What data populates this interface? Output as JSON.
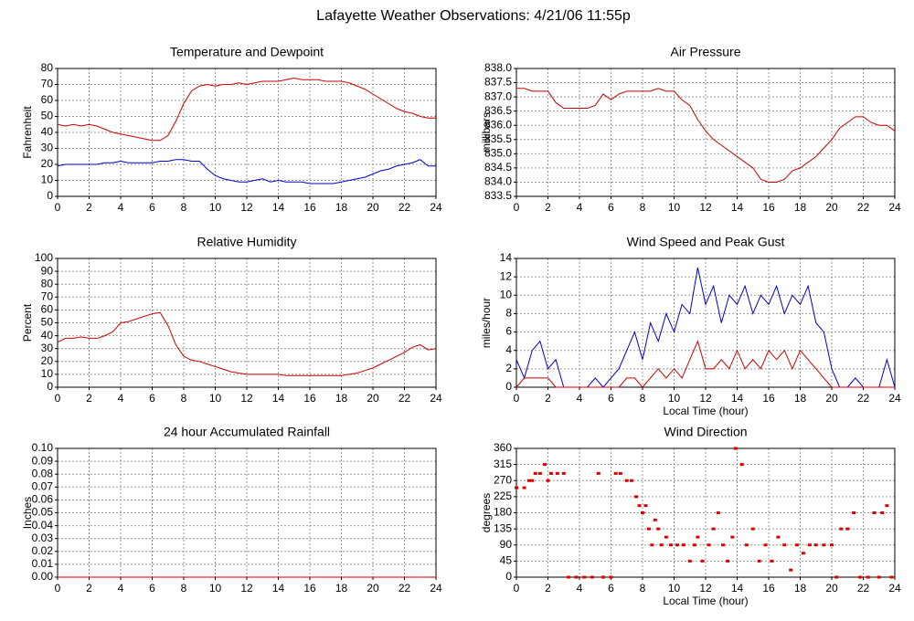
{
  "title": "Lafayette Weather Observations: 4/21/06 11:55p",
  "chart_data": [
    {
      "type": "line",
      "title": "Temperature and Dewpoint",
      "ylabel": "Fahrenheit",
      "xlim": [
        0,
        24
      ],
      "ylim": [
        0,
        80
      ],
      "xticks": [
        0,
        2,
        4,
        6,
        8,
        10,
        12,
        14,
        16,
        18,
        20,
        22,
        24
      ],
      "yticks": [
        0,
        10,
        20,
        30,
        40,
        50,
        60,
        70,
        80
      ],
      "grid": true,
      "x": [
        0,
        0.5,
        1,
        1.5,
        2,
        2.5,
        3,
        3.5,
        4,
        4.5,
        5,
        5.5,
        6,
        6.5,
        7,
        7.5,
        8,
        8.5,
        9,
        9.5,
        10,
        10.5,
        11,
        11.5,
        12,
        12.5,
        13,
        13.5,
        14,
        14.5,
        15,
        15.5,
        16,
        16.5,
        17,
        17.5,
        18,
        18.5,
        19,
        19.5,
        20,
        20.5,
        21,
        21.5,
        22,
        22.5,
        23,
        23.5,
        24
      ],
      "series": [
        {
          "color": "#cc0000",
          "values": [
            45,
            44,
            45,
            44,
            45,
            44,
            42,
            40,
            39,
            38,
            37,
            36,
            35,
            35,
            38,
            47,
            58,
            66,
            69,
            70,
            69,
            70,
            70,
            71,
            70,
            71,
            72,
            72,
            72,
            73,
            74,
            73,
            73,
            73,
            72,
            72,
            72,
            71,
            69,
            67,
            64,
            61,
            58,
            55,
            53,
            52,
            50,
            49,
            49
          ]
        },
        {
          "color": "#0000cc",
          "values": [
            19,
            20,
            20,
            20,
            20,
            20,
            21,
            21,
            22,
            21,
            21,
            21,
            21,
            22,
            22,
            23,
            23,
            22,
            22,
            17,
            13,
            11,
            10,
            9,
            9,
            10,
            11,
            9,
            10,
            9,
            9,
            9,
            8,
            8,
            8,
            8,
            9,
            10,
            11,
            12,
            14,
            16,
            17,
            19,
            20,
            21,
            23,
            19,
            19
          ]
        }
      ]
    },
    {
      "type": "line",
      "title": "Air Pressure",
      "ylabel": "millibars",
      "xlim": [
        0,
        24
      ],
      "ylim": [
        833.5,
        838.0
      ],
      "xticks": [
        0,
        2,
        4,
        6,
        8,
        10,
        12,
        14,
        16,
        18,
        20,
        22,
        24
      ],
      "yticks": [
        833.5,
        {
          "value": 834,
          "label": "834.0"
        },
        834.5,
        {
          "value": 835,
          "label": "835.0"
        },
        835.5,
        {
          "value": 836,
          "label": "836.0"
        },
        836.5,
        {
          "value": 837,
          "label": "837.0"
        },
        837.5,
        {
          "value": 838,
          "label": "838.0"
        }
      ],
      "grid": true,
      "x": [
        0,
        0.5,
        1,
        1.5,
        2,
        2.5,
        3,
        3.5,
        4,
        4.5,
        5,
        5.5,
        6,
        6.5,
        7,
        7.5,
        8,
        8.5,
        9,
        9.5,
        10,
        10.5,
        11,
        11.5,
        12,
        12.5,
        13,
        13.5,
        14,
        14.5,
        15,
        15.5,
        16,
        16.5,
        17,
        17.5,
        18,
        18.5,
        19,
        19.5,
        20,
        20.5,
        21,
        21.5,
        22,
        22.5,
        23,
        23.5,
        24
      ],
      "series": [
        {
          "color": "#cc0000",
          "values": [
            837.3,
            837.3,
            837.2,
            837.2,
            837.2,
            836.8,
            836.6,
            836.6,
            836.6,
            836.6,
            836.7,
            837.1,
            836.9,
            837.1,
            837.2,
            837.2,
            837.2,
            837.2,
            837.3,
            837.2,
            837.2,
            836.9,
            836.7,
            836.2,
            835.8,
            835.5,
            835.3,
            835.1,
            834.9,
            834.7,
            834.5,
            834.1,
            834.0,
            834.0,
            834.1,
            834.4,
            834.5,
            834.7,
            834.9,
            835.2,
            835.5,
            835.9,
            836.1,
            836.3,
            836.3,
            836.1,
            836.0,
            836.0,
            835.8
          ]
        }
      ]
    },
    {
      "type": "line",
      "title": "Relative Humidity",
      "ylabel": "Percent",
      "xlim": [
        0,
        24
      ],
      "ylim": [
        0,
        100
      ],
      "xticks": [
        0,
        2,
        4,
        6,
        8,
        10,
        12,
        14,
        16,
        18,
        20,
        22,
        24
      ],
      "yticks": [
        0,
        10,
        20,
        30,
        40,
        50,
        60,
        70,
        80,
        90,
        100
      ],
      "grid": true,
      "x": [
        0,
        0.5,
        1,
        1.5,
        2,
        2.5,
        3,
        3.5,
        4,
        4.5,
        5,
        5.5,
        6,
        6.5,
        7,
        7.5,
        8,
        8.5,
        9,
        9.5,
        10,
        10.5,
        11,
        11.5,
        12,
        12.5,
        13,
        13.5,
        14,
        14.5,
        15,
        15.5,
        16,
        16.5,
        17,
        17.5,
        18,
        18.5,
        19,
        19.5,
        20,
        20.5,
        21,
        21.5,
        22,
        22.5,
        23,
        23.5,
        24
      ],
      "series": [
        {
          "color": "#cc0000",
          "values": [
            35,
            38,
            38,
            39,
            38,
            38,
            40,
            43,
            50,
            51,
            53,
            55,
            57,
            58,
            48,
            33,
            24,
            21,
            20,
            18,
            16,
            14,
            12,
            11,
            10,
            10,
            10,
            10,
            10,
            9,
            9,
            9,
            9,
            9,
            9,
            9,
            9,
            10,
            11,
            13,
            15,
            18,
            21,
            24,
            27,
            31,
            33,
            29,
            30
          ]
        }
      ]
    },
    {
      "type": "line",
      "title": "Wind Speed and Peak Gust",
      "ylabel": "miles/hour",
      "xlabel": "Local Time (hour)",
      "xlim": [
        0,
        24
      ],
      "ylim": [
        0,
        14
      ],
      "xticks": [
        0,
        2,
        4,
        6,
        8,
        10,
        12,
        14,
        16,
        18,
        20,
        22,
        24
      ],
      "yticks": [
        0,
        2,
        4,
        6,
        8,
        10,
        12,
        14
      ],
      "grid": true,
      "x": [
        0,
        0.5,
        1,
        1.5,
        2,
        2.5,
        3,
        3.5,
        4,
        4.5,
        5,
        5.5,
        6,
        6.5,
        7,
        7.5,
        8,
        8.5,
        9,
        9.5,
        10,
        10.5,
        11,
        11.5,
        12,
        12.5,
        13,
        13.5,
        14,
        14.5,
        15,
        15.5,
        16,
        16.5,
        17,
        17.5,
        18,
        18.5,
        19,
        19.5,
        20,
        20.5,
        21,
        21.5,
        22,
        22.5,
        23,
        23.5,
        24
      ],
      "series": [
        {
          "color": "#0000cc",
          "values": [
            3,
            1,
            4,
            5,
            2,
            3,
            0,
            0,
            0,
            0,
            1,
            0,
            1,
            2,
            4,
            6,
            3,
            7,
            5,
            8,
            6,
            9,
            8,
            13,
            9,
            11,
            7,
            10,
            9,
            11,
            8,
            10,
            9,
            11,
            8,
            10,
            9,
            11,
            7,
            6,
            2,
            0,
            0,
            1,
            0,
            0,
            0,
            3,
            0
          ]
        },
        {
          "color": "#cc0000",
          "values": [
            0,
            1,
            1,
            1,
            1,
            0,
            0,
            0,
            0,
            0,
            0,
            0,
            0,
            0,
            1,
            1,
            0,
            1,
            2,
            1,
            2,
            1,
            3,
            5,
            2,
            2,
            3,
            2,
            4,
            2,
            3,
            2,
            4,
            3,
            4,
            2,
            4,
            3,
            2,
            1,
            0,
            0,
            0,
            0,
            0,
            0,
            0,
            0,
            0
          ]
        }
      ]
    },
    {
      "type": "line",
      "title": "24 hour Accumulated Rainfall",
      "ylabel": "Inches",
      "xlim": [
        0,
        24
      ],
      "ylim": [
        0,
        0.1
      ],
      "xticks": [
        0,
        2,
        4,
        6,
        8,
        10,
        12,
        14,
        16,
        18,
        20,
        22,
        24
      ],
      "yticks": [
        {
          "value": 0,
          "label": "0.00"
        },
        0.01,
        0.02,
        0.03,
        0.04,
        0.05,
        0.06,
        0.07,
        0.08,
        0.09,
        {
          "value": 0.1,
          "label": "0.10"
        }
      ],
      "grid": true,
      "x": [
        0,
        24
      ],
      "series": [
        {
          "color": "#cc0000",
          "values": [
            0,
            0
          ]
        }
      ]
    },
    {
      "type": "scatter",
      "title": "Wind Direction",
      "ylabel": "degrees",
      "xlabel": "Local Time (hour)",
      "xlim": [
        0,
        24
      ],
      "ylim": [
        0,
        360
      ],
      "xticks": [
        0,
        2,
        4,
        6,
        8,
        10,
        12,
        14,
        16,
        18,
        20,
        22,
        24
      ],
      "yticks": [
        0,
        45,
        90,
        135,
        180,
        225,
        270,
        315,
        360
      ],
      "grid": true,
      "x": [
        0,
        0.5,
        0.8,
        1,
        1.2,
        1.5,
        1.8,
        2,
        2.2,
        2.6,
        3,
        3.3,
        3.8,
        4.3,
        4.8,
        5.2,
        5.5,
        6,
        6.3,
        6.6,
        7,
        7.3,
        7.6,
        7.8,
        8,
        8.2,
        8.4,
        8.6,
        8.8,
        9,
        9.2,
        9.5,
        9.8,
        10.2,
        10.6,
        11,
        11.3,
        11.5,
        11.8,
        12.2,
        12.5,
        12.8,
        13.1,
        13.4,
        13.7,
        13.9,
        14.3,
        14.6,
        15,
        15.4,
        15.8,
        16.2,
        16.6,
        17,
        17.4,
        17.8,
        18.2,
        18.6,
        19,
        19.5,
        20,
        20.3,
        20.6,
        21,
        21.4,
        21.8,
        22.3,
        22.7,
        23,
        23.2,
        23.5,
        23.8
      ],
      "series": [
        {
          "color": "#dd0000",
          "values": [
            250,
            250,
            270,
            270,
            290,
            290,
            315,
            270,
            290,
            290,
            290,
            0,
            0,
            0,
            0,
            290,
            0,
            0,
            290,
            290,
            270,
            270,
            225,
            200,
            180,
            200,
            135,
            90,
            160,
            135,
            90,
            112,
            90,
            90,
            90,
            45,
            90,
            112,
            45,
            90,
            135,
            180,
            90,
            45,
            112,
            360,
            315,
            90,
            135,
            45,
            90,
            45,
            112,
            90,
            20,
            90,
            67,
            90,
            90,
            90,
            90,
            0,
            135,
            135,
            180,
            0,
            0,
            180,
            0,
            180,
            200,
            0
          ]
        }
      ]
    }
  ]
}
